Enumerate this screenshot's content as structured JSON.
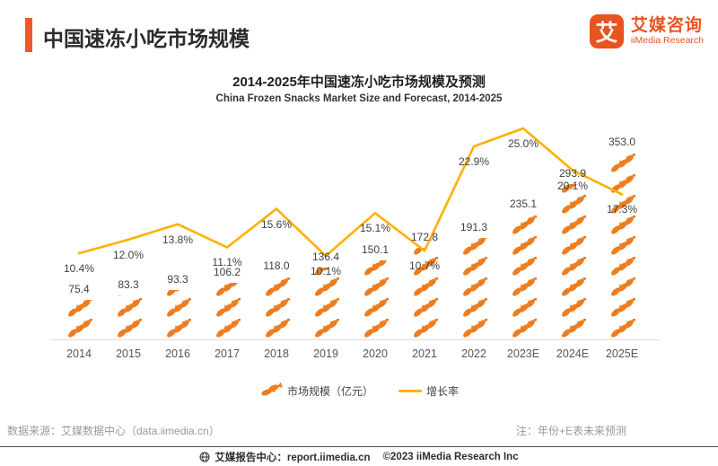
{
  "header": {
    "title": "中国速冻小吃市场规模",
    "logo": {
      "mark": "艾",
      "name_cn": "艾媒咨询",
      "name_en": "iiMedia Research"
    }
  },
  "chart": {
    "title": "2014-2025年中国速冻小吃市场规模及预测",
    "subtitle": "China Frozen Snacks Market Size and Forecast, 2014-2025"
  },
  "chart_data": {
    "type": "combo_bar_line",
    "title": "2014-2025年中国速冻小吃市场规模及预测",
    "subtitle": "China Frozen Snacks Market Size and Forecast, 2014-2025",
    "categories": [
      "2014",
      "2015",
      "2016",
      "2017",
      "2018",
      "2019",
      "2020",
      "2021",
      "2022",
      "2023E",
      "2024E",
      "2025E"
    ],
    "series": [
      {
        "name": "市场规模（亿元）",
        "kind": "pictogram-bar",
        "unit": "亿元",
        "values": [
          75.4,
          83.3,
          93.3,
          106.2,
          118.0,
          136.4,
          150.1,
          172.8,
          191.3,
          235.1,
          293.9,
          353.0
        ],
        "labels": [
          "75.4",
          "83.3",
          "93.3",
          "106.2",
          "118.0",
          "136.4",
          "150.1",
          "172.8",
          "191.3",
          "235.1",
          "293.9",
          "353.0"
        ]
      },
      {
        "name": "增长率",
        "kind": "line",
        "unit": "%",
        "values": [
          10.4,
          12.0,
          13.8,
          11.1,
          15.6,
          10.1,
          15.1,
          10.7,
          22.9,
          25.0,
          20.1,
          17.3
        ],
        "labels": [
          "10.4%",
          "12.0%",
          "13.8%",
          "11.1%",
          "15.6%",
          "10.1%",
          "15.1%",
          "10.7%",
          "22.9%",
          "25.0%",
          "20.1%",
          "17.3%"
        ]
      }
    ],
    "axes": {
      "y_left_visible": false,
      "y_right_visible": false,
      "gridlines": false
    },
    "legend_position": "bottom",
    "note": "年份+E表未来预测"
  },
  "colors": {
    "accent": "#F1582B",
    "bar_icon": "#ED7D1F",
    "line": "#FFB000"
  },
  "source": {
    "text": "数据来源：艾媒数据中心（data.iimedia.cn）"
  },
  "note": {
    "text": "注：年份+E表未来预测"
  },
  "footer": {
    "site": "艾媒报告中心：report.iimedia.cn",
    "copyright": "©2023  iiMedia Research Inc"
  }
}
